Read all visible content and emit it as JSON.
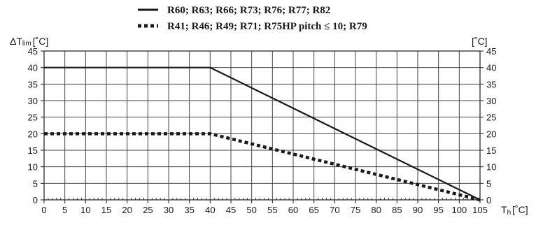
{
  "chart_data": {
    "type": "line",
    "title": "",
    "x_axis": {
      "label_main": "T",
      "label_sub": "h",
      "unit": "[˚C]",
      "min": 0,
      "max": 105,
      "ticks": [
        0,
        5,
        10,
        15,
        20,
        25,
        30,
        35,
        40,
        45,
        50,
        55,
        60,
        65,
        70,
        75,
        80,
        85,
        90,
        95,
        100,
        105
      ],
      "tick_labels": [
        "0",
        "5",
        "10",
        "15",
        "20",
        "25",
        "30",
        "35",
        "40",
        "45",
        "50",
        "55",
        "60",
        "65",
        "70",
        "75",
        "80",
        "85",
        "90",
        "95",
        "100",
        "105"
      ]
    },
    "y_axis_left": {
      "label_main": "ΔT",
      "label_sub": "lim",
      "unit": "[˚C]",
      "min": 0,
      "max": 45,
      "ticks": [
        0,
        5,
        10,
        15,
        20,
        25,
        30,
        35,
        40,
        45
      ],
      "tick_labels": [
        "0",
        "5",
        "10",
        "15",
        "20",
        "25",
        "30",
        "35",
        "40",
        "45"
      ]
    },
    "y_axis_right": {
      "unit": "[˚C]",
      "ticks": [
        0,
        5,
        10,
        15,
        20,
        25,
        30,
        35,
        40,
        45
      ],
      "tick_labels": [
        "0",
        "5",
        "10",
        "15",
        "20",
        "25",
        "30",
        "35",
        "40",
        "45"
      ]
    },
    "grid": true,
    "minor_ticks_x": 1,
    "legend_position": "top-center",
    "series": [
      {
        "name": "R60; R63; R66; R73; R76; R77; R82",
        "style": "solid",
        "color": "#1a1a1a",
        "x": [
          0,
          40,
          105
        ],
        "y": [
          40,
          40,
          0
        ]
      },
      {
        "name": "R41; R46; R49; R71; R75HP pitch ≤ 10; R79",
        "style": "dotted",
        "color": "#1a1a1a",
        "x": [
          0,
          40,
          105
        ],
        "y": [
          20,
          20,
          0
        ]
      }
    ]
  }
}
